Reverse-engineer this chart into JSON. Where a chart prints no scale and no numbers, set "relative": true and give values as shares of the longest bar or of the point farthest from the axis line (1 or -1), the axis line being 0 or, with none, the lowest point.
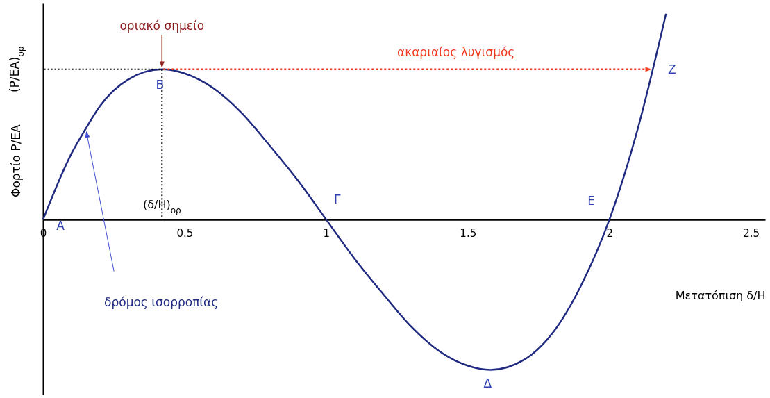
{
  "chart_data": {
    "type": "line",
    "xlabel": "Μετατόπιση δ/H",
    "ylabel": "Φορτίο P/EA",
    "relative": true,
    "xlim": [
      0,
      2.55
    ],
    "xticks": [
      0,
      0.5,
      1,
      1.5,
      2,
      2.5
    ],
    "grid": false,
    "marker": "none",
    "series": [
      {
        "color": "#1f2a80",
        "line_style": "solid",
        "x": [
          0,
          0.1,
          0.15,
          0.2,
          0.3,
          0.42,
          0.5,
          0.6,
          0.7,
          0.8,
          0.9,
          1.0,
          1.1,
          1.2,
          1.3,
          1.4,
          1.5,
          1.58,
          1.7,
          1.8,
          1.9,
          2.0,
          2.1,
          2.2
        ],
        "values": [
          0,
          0.32,
          0.44,
          0.55,
          0.68,
          0.73,
          0.71,
          0.64,
          0.52,
          0.36,
          0.19,
          0,
          -0.19,
          -0.36,
          -0.52,
          -0.64,
          -0.71,
          -0.73,
          -0.68,
          -0.55,
          -0.32,
          0,
          0.44,
          1
        ]
      },
      {
        "color": "#000000",
        "line_style": "dotted",
        "x": [
          0,
          0.42,
          0.42
        ],
        "values": [
          0.73,
          0.73,
          0
        ]
      }
    ],
    "annotations": [
      "οριακό σημείο",
      "ακαριαίος λυγισμός",
      "δρόμος ισορροπίας",
      {
        "text": "(δ/H)$_{ορ}$",
        "x": 0.42,
        "y": 0
      },
      {
        "text": "(P/EA)$_{ορ}$",
        "x": 0,
        "y": 0.73
      },
      {
        "text": "A",
        "x": 0,
        "y": 0
      },
      {
        "text": "B",
        "x": 0.42,
        "y": 0.73
      },
      {
        "text": "Γ",
        "x": 1,
        "y": 0
      },
      {
        "text": "Δ",
        "x": 1.58,
        "y": -0.73
      },
      {
        "text": "E",
        "x": 2,
        "y": 0
      },
      {
        "text": "Z",
        "x": 2.15,
        "y": 0.73
      }
    ]
  }
}
